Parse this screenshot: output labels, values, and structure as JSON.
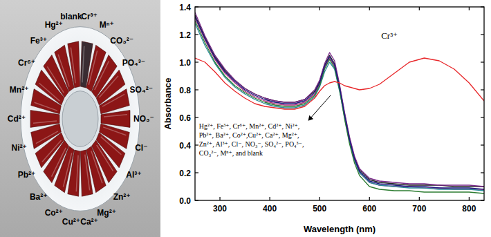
{
  "chart_data": {
    "type": "line",
    "x_label": "Wavelength (nm)",
    "y_label": "Absorbance",
    "x": [
      250,
      270,
      290,
      310,
      330,
      350,
      370,
      390,
      410,
      430,
      450,
      470,
      490,
      500,
      510,
      520,
      530,
      540,
      550,
      560,
      570,
      580,
      600,
      620,
      650,
      680,
      710,
      740,
      770,
      800,
      830
    ],
    "xlim": [
      250,
      830
    ],
    "xticks": [
      300,
      400,
      500,
      600,
      700,
      800
    ],
    "ylim": [
      0,
      1.4
    ],
    "yticks": [
      {
        "value": 0,
        "label": "0.0"
      },
      0.2,
      0.4,
      0.6,
      0.8,
      {
        "value": 1,
        "label": "1.0"
      },
      1.2,
      1.4
    ],
    "grid": false,
    "series": [
      {
        "name": "Cr³⁺",
        "color": "#e8282b",
        "values": [
          1.03,
          1.0,
          0.93,
          0.85,
          0.79,
          0.74,
          0.7,
          0.68,
          0.67,
          0.66,
          0.66,
          0.68,
          0.74,
          0.79,
          0.83,
          0.85,
          0.86,
          0.85,
          0.83,
          0.82,
          0.81,
          0.8,
          0.81,
          0.84,
          0.92,
          1.0,
          1.03,
          1.01,
          0.95,
          0.85,
          0.72
        ]
      },
      {
        "color": "#1a1a80",
        "values": [
          1.33,
          1.17,
          1.03,
          0.93,
          0.86,
          0.8,
          0.76,
          0.73,
          0.71,
          0.7,
          0.7,
          0.72,
          0.78,
          0.85,
          0.97,
          1.04,
          0.98,
          0.82,
          0.62,
          0.44,
          0.3,
          0.21,
          0.14,
          0.12,
          0.11,
          0.1,
          0.1,
          0.09,
          0.09,
          0.09,
          0.08
        ]
      },
      {
        "color": "#7a2a8a",
        "values": [
          1.36,
          1.19,
          1.05,
          0.95,
          0.87,
          0.81,
          0.77,
          0.74,
          0.72,
          0.71,
          0.71,
          0.73,
          0.8,
          0.87,
          0.99,
          1.07,
          1.01,
          0.84,
          0.64,
          0.46,
          0.32,
          0.23,
          0.16,
          0.14,
          0.13,
          0.12,
          0.12,
          0.11,
          0.11,
          0.11,
          0.1
        ]
      },
      {
        "color": "#2e7d32",
        "values": [
          1.3,
          1.14,
          1.0,
          0.9,
          0.83,
          0.78,
          0.74,
          0.71,
          0.69,
          0.68,
          0.68,
          0.7,
          0.76,
          0.83,
          0.95,
          1.02,
          0.96,
          0.8,
          0.59,
          0.41,
          0.27,
          0.18,
          0.1,
          0.08,
          0.07,
          0.07,
          0.06,
          0.06,
          0.06,
          0.06,
          0.05
        ]
      },
      {
        "color": "#2a8a9a",
        "values": [
          1.28,
          1.12,
          0.99,
          0.89,
          0.82,
          0.77,
          0.73,
          0.7,
          0.68,
          0.67,
          0.67,
          0.69,
          0.75,
          0.82,
          0.93,
          1.0,
          0.95,
          0.79,
          0.6,
          0.42,
          0.29,
          0.2,
          0.13,
          0.11,
          0.1,
          0.09,
          0.09,
          0.08,
          0.08,
          0.08,
          0.07
        ]
      },
      {
        "color": "#222222",
        "values": [
          1.34,
          1.18,
          1.04,
          0.94,
          0.87,
          0.81,
          0.77,
          0.74,
          0.72,
          0.71,
          0.71,
          0.73,
          0.79,
          0.86,
          0.98,
          1.05,
          0.99,
          0.83,
          0.63,
          0.45,
          0.31,
          0.22,
          0.15,
          0.13,
          0.12,
          0.11,
          0.11,
          0.11,
          0.1,
          0.1,
          0.1
        ]
      },
      {
        "color": "#b03080",
        "values": [
          1.32,
          1.16,
          1.02,
          0.92,
          0.85,
          0.79,
          0.75,
          0.72,
          0.7,
          0.69,
          0.69,
          0.71,
          0.77,
          0.84,
          0.96,
          1.03,
          0.97,
          0.81,
          0.61,
          0.43,
          0.29,
          0.2,
          0.13,
          0.11,
          0.1,
          0.1,
          0.09,
          0.09,
          0.08,
          0.08,
          0.08
        ]
      }
    ],
    "annotations": [
      {
        "text": "Hg²⁺, Fe³⁺, Cr⁶⁺, Mn²⁺, Cd²⁺, Ni²⁺, Pb²⁺, Ba²⁺, Co²⁺,Cu²⁺, Ca²⁺, Mg²⁺, Zn²⁺, Al³⁺, Cl⁻, NO₃⁻, SO₄²⁻, PO₄³⁻, CO₃²⁻, Mⁿ⁺, and blank"
      }
    ]
  },
  "photo": {
    "labels": [
      "blank",
      "Cr³⁺",
      "Mⁿ⁺",
      "CO₃²⁻",
      "PO₄³⁻",
      "SO₄²⁻",
      "NO₃⁻",
      "Cl⁻",
      "Al³⁺",
      "Zn²⁺",
      "Mg²⁺",
      "Ca²⁺",
      "Cu²⁺",
      "Co²⁺",
      "Ba²⁺",
      "Pb²⁺",
      "Ni²⁺",
      "Cd²⁺",
      "Mn²⁺",
      "Cr⁶⁺",
      "Fe³⁺",
      "Hg²⁺"
    ],
    "colors": [
      "#8c1616",
      "#3a2c32",
      "#8c1616",
      "#8c1616",
      "#8c1616",
      "#8c1616",
      "#8c1616",
      "#8c1616",
      "#8c1616",
      "#8c1616",
      "#8c1616",
      "#8c1616",
      "#8c1616",
      "#8c1616",
      "#8c1616",
      "#8c1616",
      "#8c1616",
      "#8c1616",
      "#8c1616",
      "#8c1616",
      "#8c1616",
      "#8c1616"
    ]
  }
}
